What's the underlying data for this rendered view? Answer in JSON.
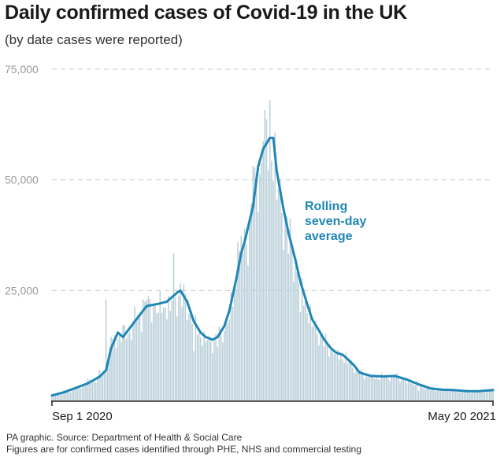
{
  "title": "Daily confirmed cases of Covid-19 in the UK",
  "subtitle": "(by date cases were reported)",
  "footer": {
    "source": "PA graphic. Source: Department of Health & Social Care",
    "note": "Figures are for confirmed cases identified through PHE, NHS and commercial testing"
  },
  "colors": {
    "bars": "#b9cfd9",
    "line": "#1f86b5",
    "grid": "#c8c8c8",
    "axis_text": "#9a9a9a"
  },
  "chart_data": {
    "type": "bar",
    "x_start": "2020-09-01",
    "x_end": "2021-05-20",
    "x_tick_labels": [
      "Sep 1 2020",
      "May 20 2021"
    ],
    "ylim": [
      0,
      75000
    ],
    "y_ticks": [
      25000,
      50000,
      75000
    ],
    "y_tick_labels": [
      "25,000",
      "50,000",
      "75,000"
    ],
    "grid": true,
    "annotation": {
      "lines": [
        "Rolling",
        "seven-day",
        "average"
      ]
    },
    "series": [
      {
        "type": "bar",
        "points": [
          [
            "2020-09-01",
            1295
          ],
          [
            "2020-09-08",
            2460
          ],
          [
            "2020-09-15",
            3105
          ],
          [
            "2020-09-22",
            4926
          ],
          [
            "2020-09-29",
            7143
          ],
          [
            "2020-10-03",
            22961
          ],
          [
            "2020-10-06",
            14542
          ],
          [
            "2020-10-13",
            17234
          ],
          [
            "2020-10-20",
            21331
          ],
          [
            "2020-10-25",
            23012
          ],
          [
            "2020-10-27",
            22885
          ],
          [
            "2020-10-31",
            21915
          ],
          [
            "2020-11-03",
            20018
          ],
          [
            "2020-11-10",
            20412
          ],
          [
            "2020-11-12",
            33470
          ],
          [
            "2020-11-17",
            21363
          ],
          [
            "2020-11-24",
            11299
          ],
          [
            "2020-12-01",
            13430
          ],
          [
            "2020-12-08",
            12282
          ],
          [
            "2020-12-15",
            18450
          ],
          [
            "2020-12-20",
            35928
          ],
          [
            "2020-12-24",
            39036
          ],
          [
            "2020-12-29",
            53135
          ],
          [
            "2021-01-04",
            58784
          ],
          [
            "2021-01-08",
            68053
          ],
          [
            "2021-01-12",
            45533
          ],
          [
            "2021-01-19",
            33355
          ],
          [
            "2021-01-26",
            20089
          ],
          [
            "2021-02-02",
            16840
          ],
          [
            "2021-02-09",
            12364
          ],
          [
            "2021-02-16",
            10625
          ],
          [
            "2021-02-23",
            8489
          ],
          [
            "2021-03-02",
            6385
          ],
          [
            "2021-03-09",
            5766
          ],
          [
            "2021-03-16",
            5294
          ],
          [
            "2021-03-23",
            5605
          ],
          [
            "2021-03-30",
            4040
          ],
          [
            "2021-04-06",
            2379
          ],
          [
            "2021-04-13",
            2472
          ],
          [
            "2021-04-20",
            2524
          ],
          [
            "2021-04-27",
            2685
          ],
          [
            "2021-05-04",
            1946
          ],
          [
            "2021-05-11",
            2474
          ],
          [
            "2021-05-20",
            2874
          ]
        ]
      },
      {
        "type": "line",
        "name": "Rolling seven-day average",
        "points": [
          [
            "2020-09-01",
            1300
          ],
          [
            "2020-09-08",
            2000
          ],
          [
            "2020-09-15",
            3000
          ],
          [
            "2020-09-22",
            4000
          ],
          [
            "2020-09-29",
            5500
          ],
          [
            "2020-10-03",
            7000
          ],
          [
            "2020-10-06",
            12000
          ],
          [
            "2020-10-10",
            15500
          ],
          [
            "2020-10-13",
            14500
          ],
          [
            "2020-10-17",
            16500
          ],
          [
            "2020-10-20",
            18000
          ],
          [
            "2020-10-27",
            21500
          ],
          [
            "2020-11-03",
            22000
          ],
          [
            "2020-11-08",
            22500
          ],
          [
            "2020-11-14",
            24500
          ],
          [
            "2020-11-16",
            25000
          ],
          [
            "2020-11-20",
            22500
          ],
          [
            "2020-11-24",
            18000
          ],
          [
            "2020-11-28",
            15500
          ],
          [
            "2020-12-01",
            14500
          ],
          [
            "2020-12-05",
            13900
          ],
          [
            "2020-12-08",
            14500
          ],
          [
            "2020-12-12",
            17000
          ],
          [
            "2020-12-15",
            20500
          ],
          [
            "2020-12-19",
            27500
          ],
          [
            "2020-12-22",
            33500
          ],
          [
            "2020-12-24",
            36000
          ],
          [
            "2020-12-29",
            44000
          ],
          [
            "2021-01-01",
            53000
          ],
          [
            "2021-01-04",
            57000
          ],
          [
            "2021-01-08",
            59500
          ],
          [
            "2021-01-10",
            59500
          ],
          [
            "2021-01-12",
            52000
          ],
          [
            "2021-01-16",
            43500
          ],
          [
            "2021-01-19",
            38000
          ],
          [
            "2021-01-23",
            32000
          ],
          [
            "2021-01-26",
            27000
          ],
          [
            "2021-01-30",
            22000
          ],
          [
            "2021-02-02",
            18500
          ],
          [
            "2021-02-06",
            16000
          ],
          [
            "2021-02-09",
            14000
          ],
          [
            "2021-02-13",
            12000
          ],
          [
            "2021-02-16",
            11000
          ],
          [
            "2021-02-20",
            10500
          ],
          [
            "2021-02-23",
            9500
          ],
          [
            "2021-02-27",
            8000
          ],
          [
            "2021-03-02",
            6500
          ],
          [
            "2021-03-06",
            6000
          ],
          [
            "2021-03-09",
            5700
          ],
          [
            "2021-03-16",
            5600
          ],
          [
            "2021-03-23",
            5700
          ],
          [
            "2021-03-30",
            4900
          ],
          [
            "2021-04-06",
            3800
          ],
          [
            "2021-04-13",
            2900
          ],
          [
            "2021-04-20",
            2600
          ],
          [
            "2021-04-27",
            2500
          ],
          [
            "2021-05-04",
            2300
          ],
          [
            "2021-05-11",
            2250
          ],
          [
            "2021-05-20",
            2500
          ]
        ]
      }
    ]
  }
}
